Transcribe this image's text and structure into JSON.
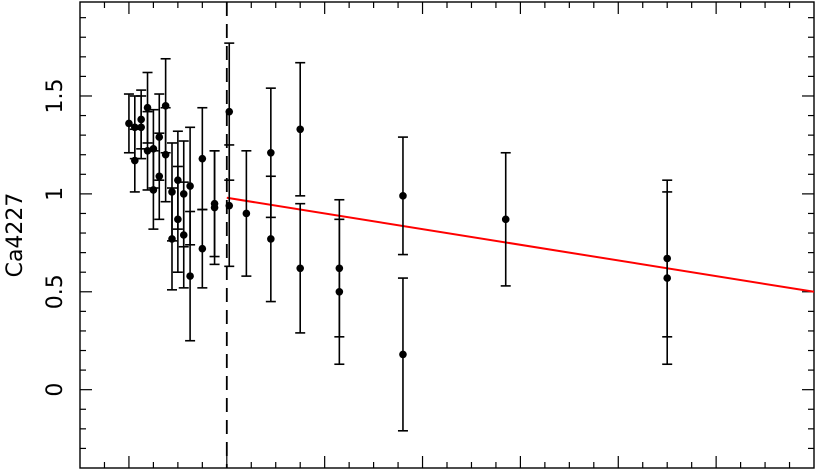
{
  "chart_data": {
    "type": "scatter",
    "title": "",
    "xlabel": "",
    "ylabel": "Ca4227",
    "xlim": [
      0,
      15
    ],
    "ylim": [
      -0.4,
      1.98
    ],
    "y_ticks_major": [
      0,
      0.5,
      1,
      1.5
    ],
    "y_tick_labels": [
      "0",
      "0.5",
      "1",
      "1.5"
    ],
    "x_ticks_major": [
      1,
      3,
      5,
      7,
      9,
      11,
      13
    ],
    "x_tick_labels": [],
    "grid": false,
    "points": [
      {
        "x": 1.0,
        "y": 1.36,
        "err": 0.15
      },
      {
        "x": 1.12,
        "y": 1.17,
        "err": 0.16
      },
      {
        "x": 1.12,
        "y": 1.34,
        "err": 0.16
      },
      {
        "x": 1.25,
        "y": 1.38,
        "err": 0.15
      },
      {
        "x": 1.25,
        "y": 1.34,
        "err": 0.16
      },
      {
        "x": 1.38,
        "y": 1.44,
        "err": 0.18
      },
      {
        "x": 1.38,
        "y": 1.22,
        "err": 0.2
      },
      {
        "x": 1.5,
        "y": 1.23,
        "err": 0.2
      },
      {
        "x": 1.5,
        "y": 1.02,
        "err": 0.2
      },
      {
        "x": 1.62,
        "y": 1.29,
        "err": 0.22
      },
      {
        "x": 1.62,
        "y": 1.09,
        "err": 0.22
      },
      {
        "x": 1.75,
        "y": 1.45,
        "err": 0.24
      },
      {
        "x": 1.75,
        "y": 1.2,
        "err": 0.24
      },
      {
        "x": 1.88,
        "y": 1.01,
        "err": 0.25
      },
      {
        "x": 1.88,
        "y": 0.77,
        "err": 0.26
      },
      {
        "x": 2.0,
        "y": 1.07,
        "err": 0.25
      },
      {
        "x": 2.0,
        "y": 0.87,
        "err": 0.27
      },
      {
        "x": 2.12,
        "y": 1.0,
        "err": 0.27
      },
      {
        "x": 2.12,
        "y": 0.79,
        "err": 0.27
      },
      {
        "x": 2.25,
        "y": 1.04,
        "err": 0.3
      },
      {
        "x": 2.25,
        "y": 0.58,
        "err": 0.33
      },
      {
        "x": 2.5,
        "y": 1.18,
        "err": 0.26
      },
      {
        "x": 2.5,
        "y": 0.72,
        "err": 0.2
      },
      {
        "x": 2.75,
        "y": 0.95,
        "err": 0.27
      },
      {
        "x": 2.75,
        "y": 0.93,
        "err": 0.29
      },
      {
        "x": 3.05,
        "y": 1.42,
        "err": 0.35
      },
      {
        "x": 3.05,
        "y": 0.94,
        "err": 0.31
      },
      {
        "x": 3.4,
        "y": 0.9,
        "err": 0.32
      },
      {
        "x": 3.9,
        "y": 1.21,
        "err": 0.33
      },
      {
        "x": 3.9,
        "y": 0.77,
        "err": 0.32
      },
      {
        "x": 4.5,
        "y": 1.33,
        "err": 0.34
      },
      {
        "x": 4.5,
        "y": 0.62,
        "err": 0.33
      },
      {
        "x": 5.3,
        "y": 0.62,
        "err": 0.35
      },
      {
        "x": 5.3,
        "y": 0.5,
        "err": 0.37
      },
      {
        "x": 6.6,
        "y": 0.99,
        "err": 0.3
      },
      {
        "x": 6.6,
        "y": 0.18,
        "err": 0.39
      },
      {
        "x": 8.7,
        "y": 0.87,
        "err": 0.34
      },
      {
        "x": 12.0,
        "y": 0.67,
        "err": 0.4
      },
      {
        "x": 12.0,
        "y": 0.57,
        "err": 0.44
      }
    ],
    "fit_line": {
      "x": [
        3.0,
        15.0
      ],
      "y": [
        0.98,
        0.5
      ],
      "color": "#ff0000"
    },
    "reference_line": {
      "orientation": "vertical",
      "x": 3.0,
      "style": "dashed",
      "color": "#000000"
    }
  }
}
